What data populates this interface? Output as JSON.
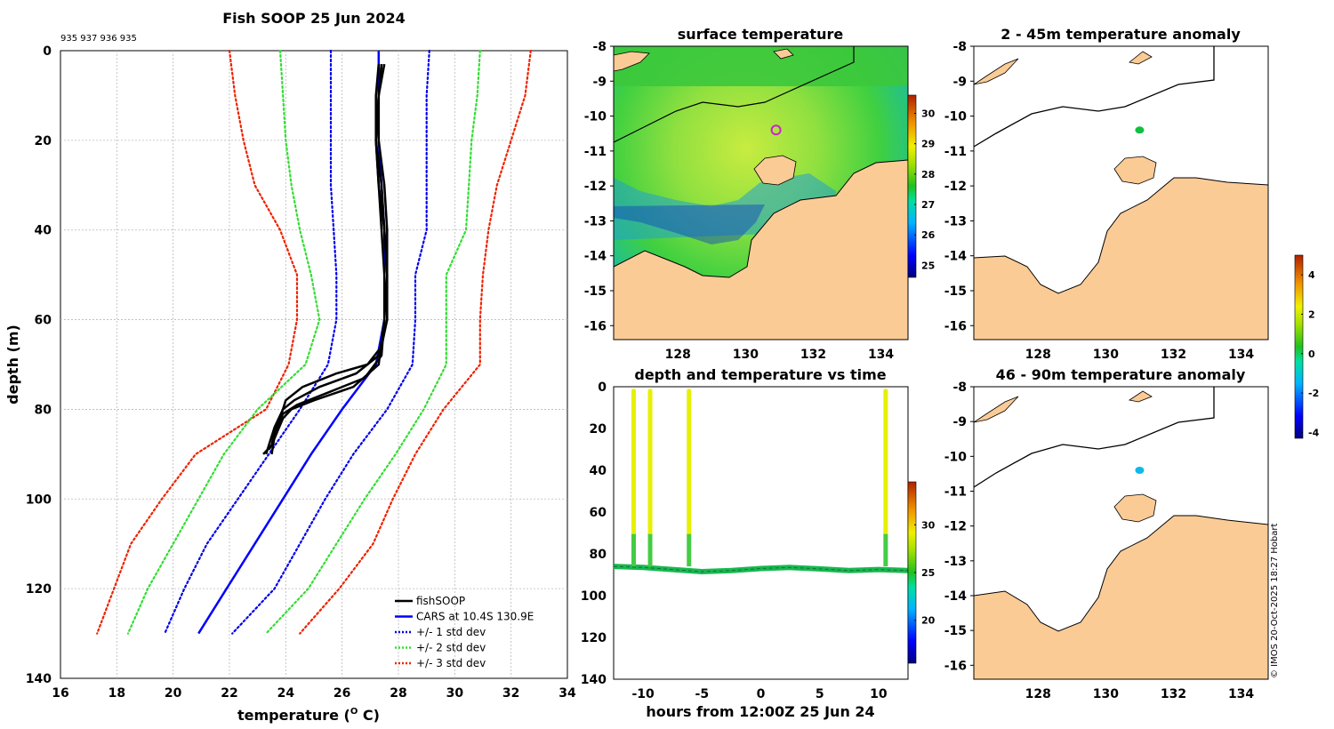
{
  "colors": {
    "fish": "#000000",
    "cars": "#0000ff",
    "std1": "#0000ee",
    "std2": "#33dd33",
    "std3": "#ee2200",
    "land": "#fbcb96",
    "coast": "#000000"
  },
  "chart_data": [
    {
      "id": "profile",
      "type": "line",
      "title": "Fish SOOP 25 Jun 2024",
      "subtitle": "935 937 936 935",
      "xlabel": "temperature (",
      "xlabel_sup": "O",
      "xlabel_end": " C)",
      "ylabel": "depth (m)",
      "xlim": [
        16,
        34
      ],
      "ylim": [
        140,
        0
      ],
      "xticks": [
        16,
        18,
        20,
        22,
        24,
        26,
        28,
        30,
        32,
        34
      ],
      "yticks": [
        0,
        20,
        40,
        60,
        80,
        100,
        120,
        140
      ],
      "legend": [
        "fishSOOP",
        "CARS at 10.4S 130.9E",
        "+/- 1 std dev",
        "+/- 2 std dev",
        "+/- 3 std dev"
      ],
      "legend_position": "bottom-right",
      "depths": [
        0,
        10,
        20,
        30,
        40,
        50,
        60,
        70,
        80,
        90,
        100,
        110,
        120,
        130
      ],
      "cars_mean": [
        27.3,
        27.3,
        27.3,
        27.4,
        27.5,
        27.5,
        27.5,
        27.2,
        26.0,
        24.9,
        23.9,
        22.9,
        21.9,
        20.9
      ],
      "cars_minus1": [
        25.6,
        25.6,
        25.6,
        25.6,
        25.7,
        25.8,
        25.8,
        25.5,
        24.5,
        23.4,
        22.3,
        21.2,
        20.4,
        19.7
      ],
      "cars_plus1": [
        29.1,
        29.0,
        29.0,
        29.0,
        29.0,
        28.6,
        28.6,
        28.5,
        27.6,
        26.4,
        25.4,
        24.5,
        23.6,
        22.1
      ],
      "cars_minus2": [
        23.8,
        23.9,
        24.0,
        24.2,
        24.5,
        24.9,
        25.2,
        24.7,
        23.0,
        21.8,
        20.9,
        20.0,
        19.1,
        18.4
      ],
      "cars_plus2": [
        30.9,
        30.8,
        30.6,
        30.5,
        30.4,
        29.7,
        29.7,
        29.7,
        28.9,
        27.9,
        26.8,
        25.8,
        24.8,
        23.3
      ],
      "cars_minus3": [
        22.0,
        22.2,
        22.5,
        22.9,
        23.8,
        24.4,
        24.4,
        24.1,
        23.3,
        20.8,
        19.6,
        18.5,
        17.9,
        17.3
      ],
      "cars_plus3": [
        32.7,
        32.5,
        32.0,
        31.5,
        31.2,
        31.0,
        30.9,
        30.9,
        29.6,
        28.6,
        27.8,
        27.1,
        25.9,
        24.5
      ],
      "fish_profiles": [
        {
          "t": [
            27.4,
            27.3,
            27.2,
            27.3,
            27.5,
            27.6,
            27.6,
            27.4,
            26.9,
            25.8,
            24.6,
            24.0,
            23.8,
            23.6,
            23.5
          ],
          "d": [
            3,
            10,
            20,
            30,
            40,
            50,
            60,
            66,
            70,
            72,
            75,
            78,
            82,
            86,
            90
          ]
        },
        {
          "t": [
            27.3,
            27.2,
            27.2,
            27.4,
            27.5,
            27.6,
            27.6,
            27.3,
            26.5,
            25.2,
            24.3,
            23.9,
            23.6,
            23.4,
            23.3
          ],
          "d": [
            3,
            10,
            20,
            30,
            40,
            50,
            60,
            68,
            72,
            75,
            78,
            80,
            84,
            88,
            90
          ]
        },
        {
          "t": [
            27.5,
            27.3,
            27.3,
            27.5,
            27.6,
            27.6,
            27.5,
            27.4,
            26.8,
            25.6,
            24.4,
            23.9,
            23.6,
            23.5,
            23.4
          ],
          "d": [
            3,
            10,
            20,
            30,
            40,
            50,
            60,
            68,
            73,
            76,
            79,
            81,
            85,
            88,
            89
          ]
        },
        {
          "t": [
            27.4,
            27.3,
            27.2,
            27.3,
            27.4,
            27.5,
            27.5,
            27.3,
            26.4,
            25.0,
            24.2,
            23.9,
            23.7,
            23.5,
            23.2
          ],
          "d": [
            3,
            10,
            20,
            30,
            40,
            50,
            60,
            70,
            75,
            78,
            80,
            82,
            85,
            88,
            90
          ]
        }
      ]
    },
    {
      "id": "sst_map",
      "type": "heatmap",
      "title": "surface temperature",
      "xticks": [
        128,
        130,
        132,
        134
      ],
      "yticks": [
        -8,
        -9,
        -10,
        -11,
        -12,
        -13,
        -14,
        -15,
        -16
      ],
      "xlim": [
        126.1,
        134.8
      ],
      "ylim": [
        -16.4,
        -8
      ],
      "colorbar": {
        "min": 24.6,
        "max": 30.6,
        "ticks": [
          25,
          26,
          27,
          28,
          29,
          30
        ]
      },
      "marker": {
        "lon": 130.9,
        "lat": -10.4
      }
    },
    {
      "id": "depth_time",
      "type": "scatter",
      "title": "depth and temperature vs time",
      "xlabel": "hours from 12:00Z 25 Jun 24",
      "xlim": [
        -12.5,
        12.5
      ],
      "ylim": [
        140,
        0
      ],
      "xticks": [
        -10,
        -5,
        0,
        5,
        10
      ],
      "yticks": [
        0,
        20,
        40,
        60,
        80,
        100,
        120,
        140
      ],
      "colorbar": {
        "min": 15.5,
        "max": 34.5,
        "ticks": [
          20,
          25,
          30
        ]
      },
      "casts_hours": [
        -10.8,
        -9.4,
        -6.1,
        10.6
      ],
      "cast_max_depth": 86,
      "bottom_track_hours": [
        -12.5,
        -10,
        -7.5,
        -5,
        -2.5,
        0,
        2.5,
        5,
        7.5,
        10,
        12.5
      ],
      "bottom_track_depths": [
        86,
        86.5,
        87.5,
        88.5,
        88.0,
        87.0,
        86.5,
        87.2,
        88.0,
        87.5,
        88.0
      ]
    },
    {
      "id": "anom_shallow",
      "type": "heatmap",
      "title": "2 - 45m temperature anomaly",
      "xticks": [
        128,
        130,
        132,
        134
      ],
      "yticks": [
        -8,
        -9,
        -10,
        -11,
        -12,
        -13,
        -14,
        -15,
        -16
      ],
      "xlim": [
        126.1,
        134.8
      ],
      "ylim": [
        -16.4,
        -8
      ],
      "anomaly": 0.3,
      "marker": {
        "lon": 131.0,
        "lat": -10.4
      }
    },
    {
      "id": "anom_deep",
      "type": "heatmap",
      "title": "46 - 90m temperature anomaly",
      "xticks": [
        128,
        130,
        132,
        134
      ],
      "yticks": [
        -8,
        -9,
        -10,
        -11,
        -12,
        -13,
        -14,
        -15,
        -16
      ],
      "xlim": [
        126.1,
        134.8
      ],
      "ylim": [
        -16.4,
        -8
      ],
      "anomaly": -1.7,
      "marker": {
        "lon": 131.0,
        "lat": -10.4
      }
    },
    {
      "id": "anom_colorbar",
      "type": "colorbar",
      "min": -4.3,
      "max": 5.0,
      "ticks": [
        -4,
        -2,
        0,
        2,
        4
      ]
    }
  ],
  "credit": "© IMOS 20-Oct-2025 18:27 Hobart"
}
